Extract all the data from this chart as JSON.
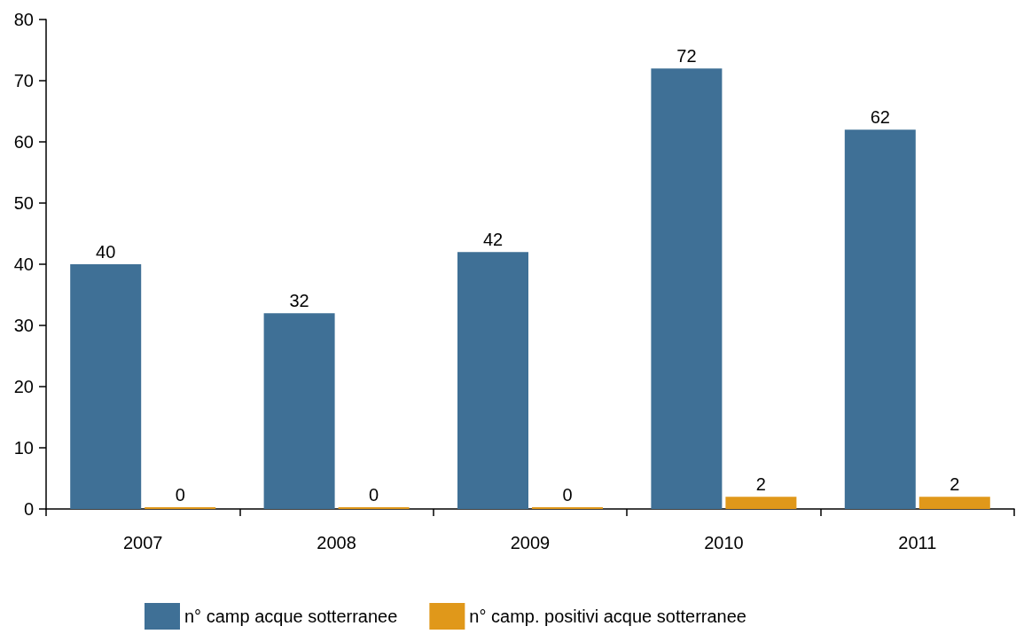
{
  "chart_data": {
    "type": "bar",
    "categories": [
      "2007",
      "2008",
      "2009",
      "2010",
      "2011"
    ],
    "series": [
      {
        "name": "n° camp acque sotterranee",
        "color": "#3f7096",
        "values": [
          40,
          32,
          42,
          72,
          62
        ]
      },
      {
        "name": "n° camp. positivi acque sotterranee",
        "color": "#e0981a",
        "values": [
          0,
          0,
          0,
          2,
          2
        ]
      }
    ],
    "ylim": [
      0,
      80
    ],
    "yticks": [
      0,
      10,
      20,
      30,
      40,
      50,
      60,
      70,
      80
    ],
    "grid": false,
    "legend": "bottom",
    "data_labels": true
  }
}
